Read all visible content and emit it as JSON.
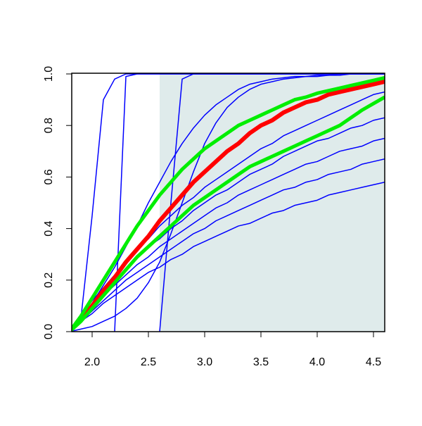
{
  "chart_data": {
    "type": "line",
    "x": [
      1.8,
      1.9,
      2.0,
      2.1,
      2.2,
      2.3,
      2.4,
      2.5,
      2.6,
      2.7,
      2.8,
      2.9,
      3.0,
      3.1,
      3.2,
      3.3,
      3.4,
      3.5,
      3.6,
      3.7,
      3.8,
      3.9,
      4.0,
      4.1,
      4.2,
      4.3,
      4.4,
      4.5,
      4.6
    ],
    "xlim": [
      1.8,
      4.6
    ],
    "ylim": [
      0,
      1
    ],
    "xticks": [
      {
        "value": 2.0,
        "label": "2.0"
      },
      {
        "value": 2.5,
        "label": "2.5"
      },
      {
        "value": 3.0,
        "label": "3.0"
      },
      {
        "value": 3.5,
        "label": "3.5"
      },
      {
        "value": 4.0,
        "label": "4.0"
      },
      {
        "value": 4.5,
        "label": "4.5"
      }
    ],
    "yticks": [
      {
        "value": 0,
        "label": "0.0"
      },
      {
        "value": 0.2,
        "label": "0.2"
      },
      {
        "value": 0.4,
        "label": "0.4"
      },
      {
        "value": 0.6,
        "label": "0.6"
      },
      {
        "value": 0.8,
        "label": "0.8"
      },
      {
        "value": 1,
        "label": "1.0"
      }
    ],
    "shaded_region": {
      "xmin": 2.6,
      "xmax": 4.6,
      "color": "#dfebeb"
    },
    "series": [
      {
        "color": "#0000ff",
        "linewidth": 1.5,
        "values": [
          0,
          0.05,
          0.45,
          0.9,
          0.98,
          1,
          1,
          1,
          1,
          1,
          1,
          1,
          1,
          1,
          1,
          1,
          1,
          1,
          1,
          1,
          1,
          1,
          1,
          1,
          1,
          1,
          1,
          1,
          1
        ]
      },
      {
        "color": "#0000ff",
        "linewidth": 1.5,
        "values": [
          null,
          null,
          null,
          null,
          0,
          0.99,
          1,
          1,
          1,
          1,
          1,
          1,
          1,
          1,
          1,
          1,
          1,
          1,
          1,
          1,
          1,
          1,
          1,
          1,
          1,
          1,
          1,
          1,
          1
        ]
      },
      {
        "color": "#0000ff",
        "linewidth": 1.5,
        "values": [
          null,
          null,
          null,
          null,
          null,
          null,
          null,
          null,
          0,
          0.5,
          0.98,
          1,
          1,
          1,
          1,
          1,
          1,
          1,
          1,
          1,
          1,
          1,
          1,
          1,
          1,
          1,
          1,
          1,
          1
        ]
      },
      {
        "color": "#0000ff",
        "linewidth": 1.5,
        "values": [
          0,
          0.01,
          0.02,
          0.04,
          0.06,
          0.09,
          0.13,
          0.19,
          0.27,
          0.38,
          0.5,
          0.62,
          0.73,
          0.81,
          0.87,
          0.91,
          0.94,
          0.96,
          0.97,
          0.98,
          0.985,
          0.99,
          0.99,
          0.995,
          0.995,
          1,
          1,
          1,
          1
        ]
      },
      {
        "color": "#0000ff",
        "linewidth": 1.5,
        "values": [
          0,
          0.05,
          0.11,
          0.18,
          0.25,
          0.33,
          0.41,
          0.5,
          0.58,
          0.66,
          0.73,
          0.79,
          0.84,
          0.88,
          0.91,
          0.94,
          0.96,
          0.97,
          0.98,
          0.985,
          0.99,
          0.99,
          0.995,
          0.995,
          1,
          1,
          1,
          1,
          1
        ]
      },
      {
        "color": "#0000ff",
        "linewidth": 1.5,
        "values": [
          0,
          0.04,
          0.07,
          0.11,
          0.14,
          0.17,
          0.2,
          0.23,
          0.25,
          0.28,
          0.3,
          0.33,
          0.35,
          0.37,
          0.39,
          0.41,
          0.42,
          0.44,
          0.46,
          0.47,
          0.49,
          0.5,
          0.51,
          0.53,
          0.54,
          0.55,
          0.56,
          0.57,
          0.58
        ]
      },
      {
        "color": "#0000ff",
        "linewidth": 1.5,
        "values": [
          0,
          0.04,
          0.08,
          0.12,
          0.16,
          0.2,
          0.23,
          0.26,
          0.29,
          0.32,
          0.35,
          0.38,
          0.4,
          0.43,
          0.45,
          0.47,
          0.49,
          0.51,
          0.53,
          0.55,
          0.56,
          0.58,
          0.59,
          0.61,
          0.62,
          0.63,
          0.65,
          0.66,
          0.67
        ]
      },
      {
        "color": "#0000ff",
        "linewidth": 1.5,
        "values": [
          0,
          0.05,
          0.09,
          0.14,
          0.18,
          0.22,
          0.26,
          0.29,
          0.33,
          0.36,
          0.39,
          0.42,
          0.45,
          0.48,
          0.5,
          0.53,
          0.55,
          0.57,
          0.59,
          0.61,
          0.63,
          0.65,
          0.66,
          0.68,
          0.7,
          0.71,
          0.72,
          0.74,
          0.75
        ]
      },
      {
        "color": "#0000ff",
        "linewidth": 1.5,
        "values": [
          0,
          0.05,
          0.1,
          0.15,
          0.2,
          0.24,
          0.29,
          0.33,
          0.36,
          0.4,
          0.43,
          0.47,
          0.5,
          0.53,
          0.55,
          0.58,
          0.61,
          0.63,
          0.65,
          0.68,
          0.7,
          0.72,
          0.74,
          0.75,
          0.77,
          0.79,
          0.8,
          0.82,
          0.83
        ]
      },
      {
        "color": "#0000ff",
        "linewidth": 1.5,
        "values": [
          0,
          0.06,
          0.12,
          0.17,
          0.22,
          0.27,
          0.32,
          0.36,
          0.41,
          0.45,
          0.49,
          0.52,
          0.56,
          0.59,
          0.62,
          0.65,
          0.68,
          0.71,
          0.73,
          0.76,
          0.78,
          0.8,
          0.82,
          0.84,
          0.86,
          0.88,
          0.9,
          0.92,
          0.93
        ]
      },
      {
        "color": "#ff0000",
        "linewidth": 6,
        "values": [
          0,
          0.05,
          0.1,
          0.16,
          0.21,
          0.27,
          0.32,
          0.37,
          0.43,
          0.48,
          0.53,
          0.58,
          0.62,
          0.66,
          0.7,
          0.73,
          0.77,
          0.8,
          0.82,
          0.85,
          0.87,
          0.89,
          0.9,
          0.92,
          0.93,
          0.94,
          0.95,
          0.96,
          0.97
        ]
      },
      {
        "color": "#00ee00",
        "linewidth": 5,
        "values": [
          0,
          0.06,
          0.13,
          0.2,
          0.27,
          0.34,
          0.41,
          0.47,
          0.53,
          0.58,
          0.63,
          0.67,
          0.71,
          0.74,
          0.77,
          0.8,
          0.82,
          0.84,
          0.86,
          0.88,
          0.9,
          0.91,
          0.925,
          0.935,
          0.945,
          0.955,
          0.965,
          0.975,
          0.985
        ]
      },
      {
        "color": "#00ee00",
        "linewidth": 5,
        "values": [
          0,
          0.04,
          0.09,
          0.14,
          0.19,
          0.24,
          0.29,
          0.33,
          0.37,
          0.41,
          0.45,
          0.49,
          0.52,
          0.55,
          0.58,
          0.61,
          0.64,
          0.66,
          0.68,
          0.7,
          0.72,
          0.74,
          0.76,
          0.78,
          0.8,
          0.83,
          0.86,
          0.885,
          0.91
        ]
      }
    ]
  }
}
